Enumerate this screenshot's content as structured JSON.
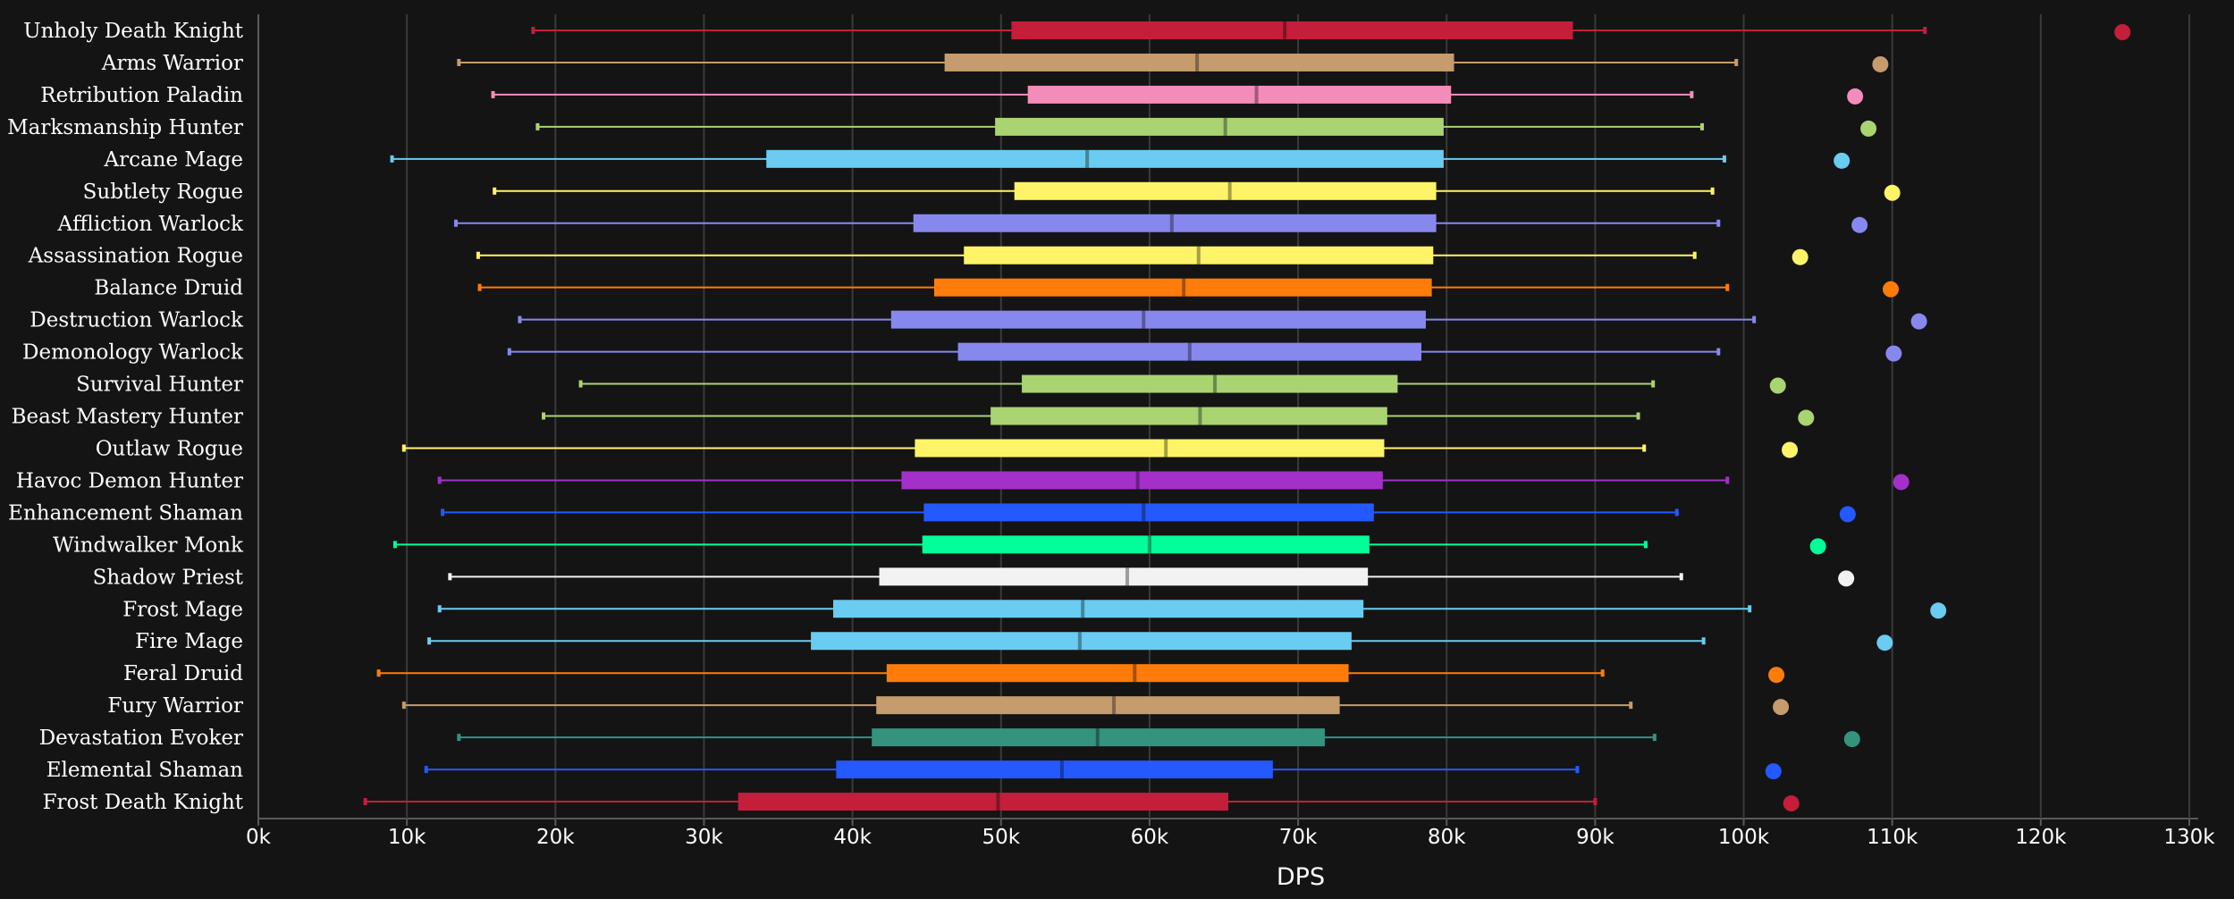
{
  "chart_data": {
    "type": "boxplot",
    "xlabel": "DPS",
    "xlim": [
      0,
      130000
    ],
    "xticks": [
      {
        "value": 0,
        "label": "0k"
      },
      {
        "value": 10000,
        "label": "10k"
      },
      {
        "value": 20000,
        "label": "20k"
      },
      {
        "value": 30000,
        "label": "30k"
      },
      {
        "value": 40000,
        "label": "40k"
      },
      {
        "value": 50000,
        "label": "50k"
      },
      {
        "value": 60000,
        "label": "60k"
      },
      {
        "value": 70000,
        "label": "70k"
      },
      {
        "value": 80000,
        "label": "80k"
      },
      {
        "value": 90000,
        "label": "90k"
      },
      {
        "value": 100000,
        "label": "100k"
      },
      {
        "value": 110000,
        "label": "110k"
      },
      {
        "value": 120000,
        "label": "120k"
      },
      {
        "value": 130000,
        "label": "130k"
      }
    ],
    "grid": true,
    "series": [
      {
        "name": "Unholy Death Knight",
        "color": "#C41E3A",
        "min": 18500,
        "q1": 50700,
        "median": 69100,
        "q3": 88500,
        "max": 112200,
        "outlier": 125500
      },
      {
        "name": "Arms Warrior",
        "color": "#C69B6D",
        "min": 13500,
        "q1": 46200,
        "median": 63200,
        "q3": 80500,
        "max": 99500,
        "outlier": 109200
      },
      {
        "name": "Retribution Paladin",
        "color": "#F48CBA",
        "min": 15800,
        "q1": 51800,
        "median": 67200,
        "q3": 80300,
        "max": 96500,
        "outlier": 107500
      },
      {
        "name": "Marksmanship Hunter",
        "color": "#AAD372",
        "min": 18800,
        "q1": 49600,
        "median": 65100,
        "q3": 79800,
        "max": 97200,
        "outlier": 108400
      },
      {
        "name": "Arcane Mage",
        "color": "#69CCF0",
        "min": 9000,
        "q1": 34200,
        "median": 55800,
        "q3": 79800,
        "max": 98700,
        "outlier": 106600
      },
      {
        "name": "Subtlety Rogue",
        "color": "#FFF468",
        "min": 15900,
        "q1": 50900,
        "median": 65400,
        "q3": 79300,
        "max": 97900,
        "outlier": 110000
      },
      {
        "name": "Affliction Warlock",
        "color": "#8788EE",
        "min": 13300,
        "q1": 44100,
        "median": 61500,
        "q3": 79300,
        "max": 98300,
        "outlier": 107800
      },
      {
        "name": "Assassination Rogue",
        "color": "#FFF468",
        "min": 14800,
        "q1": 47500,
        "median": 63300,
        "q3": 79100,
        "max": 96700,
        "outlier": 103800
      },
      {
        "name": "Balance Druid",
        "color": "#FF7C0A",
        "min": 14900,
        "q1": 45500,
        "median": 62300,
        "q3": 79000,
        "max": 98900,
        "outlier": 109900
      },
      {
        "name": "Destruction Warlock",
        "color": "#8788EE",
        "min": 17600,
        "q1": 42600,
        "median": 59600,
        "q3": 78600,
        "max": 100700,
        "outlier": 111800
      },
      {
        "name": "Demonology Warlock",
        "color": "#8788EE",
        "min": 16900,
        "q1": 47100,
        "median": 62700,
        "q3": 78300,
        "max": 98300,
        "outlier": 110100
      },
      {
        "name": "Survival Hunter",
        "color": "#AAD372",
        "min": 21700,
        "q1": 51400,
        "median": 64400,
        "q3": 76700,
        "max": 93900,
        "outlier": 102300
      },
      {
        "name": "Beast Mastery Hunter",
        "color": "#AAD372",
        "min": 19200,
        "q1": 49300,
        "median": 63400,
        "q3": 76000,
        "max": 92900,
        "outlier": 104200
      },
      {
        "name": "Outlaw Rogue",
        "color": "#FFF468",
        "min": 9800,
        "q1": 44200,
        "median": 61100,
        "q3": 75800,
        "max": 93300,
        "outlier": 103100
      },
      {
        "name": "Havoc Demon Hunter",
        "color": "#A330C9",
        "min": 12200,
        "q1": 43300,
        "median": 59200,
        "q3": 75700,
        "max": 98900,
        "outlier": 110600
      },
      {
        "name": "Enhancement Shaman",
        "color": "#2359FF",
        "min": 12400,
        "q1": 44800,
        "median": 59600,
        "q3": 75100,
        "max": 95500,
        "outlier": 107000
      },
      {
        "name": "Windwalker Monk",
        "color": "#00FF98",
        "min": 9200,
        "q1": 44700,
        "median": 60000,
        "q3": 74800,
        "max": 93400,
        "outlier": 105000
      },
      {
        "name": "Shadow Priest",
        "color": "#F2F2F2",
        "min": 12900,
        "q1": 41800,
        "median": 58500,
        "q3": 74700,
        "max": 95800,
        "outlier": 106900
      },
      {
        "name": "Frost Mage",
        "color": "#69CCF0",
        "min": 12200,
        "q1": 38700,
        "median": 55500,
        "q3": 74400,
        "max": 100400,
        "outlier": 113100
      },
      {
        "name": "Fire Mage",
        "color": "#69CCF0",
        "min": 11500,
        "q1": 37200,
        "median": 55300,
        "q3": 73600,
        "max": 97300,
        "outlier": 109500
      },
      {
        "name": "Feral Druid",
        "color": "#FF7C0A",
        "min": 8100,
        "q1": 42300,
        "median": 59000,
        "q3": 73400,
        "max": 90500,
        "outlier": 102200
      },
      {
        "name": "Fury Warrior",
        "color": "#C69B6D",
        "min": 9800,
        "q1": 41600,
        "median": 57600,
        "q3": 72800,
        "max": 92400,
        "outlier": 102500
      },
      {
        "name": "Devastation Evoker",
        "color": "#33937F",
        "min": 13500,
        "q1": 41300,
        "median": 56500,
        "q3": 71800,
        "max": 94000,
        "outlier": 107300
      },
      {
        "name": "Elemental Shaman",
        "color": "#2359FF",
        "min": 11300,
        "q1": 38900,
        "median": 54100,
        "q3": 68300,
        "max": 88800,
        "outlier": 102000
      },
      {
        "name": "Frost Death Knight",
        "color": "#C41E3A",
        "min": 7200,
        "q1": 32300,
        "median": 49800,
        "q3": 65300,
        "max": 90000,
        "outlier": 103200
      }
    ]
  }
}
